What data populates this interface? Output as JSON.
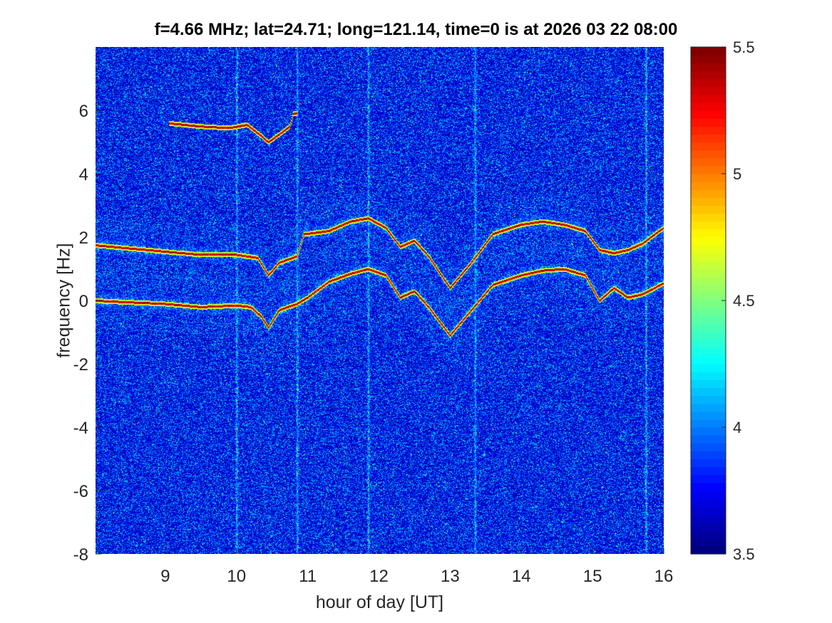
{
  "chart_data": {
    "type": "heatmap",
    "title": "f=4.66 MHz;  lat=24.71; long=121.14, time=0 is at 2026 03 22 08:00",
    "xlabel": "hour of day [UT]",
    "ylabel": "frequency [Hz]",
    "xlim": [
      8.02,
      16.0
    ],
    "ylim": [
      -8,
      8
    ],
    "xticks": [
      9,
      10,
      11,
      12,
      13,
      14,
      15,
      16
    ],
    "yticks": [
      -8,
      -6,
      -4,
      -2,
      0,
      2,
      4,
      6
    ],
    "colorbar": {
      "colormap": "jet",
      "clim": [
        3.5,
        5.5
      ],
      "ticks": [
        3.5,
        4,
        4.5,
        5,
        5.5
      ]
    },
    "background_level": 3.6,
    "series": [
      {
        "x": [
          8.02,
          8.5,
          9.0,
          9.5,
          10.0,
          10.3,
          10.45,
          10.6,
          10.85,
          10.95,
          11.3,
          11.6,
          11.85,
          12.1,
          12.3,
          12.5,
          12.7,
          13.0,
          13.3,
          13.6,
          14.0,
          14.3,
          14.6,
          14.9,
          15.1,
          15.3,
          15.5,
          15.7,
          16.0
        ],
        "y": [
          1.75,
          1.65,
          1.55,
          1.45,
          1.45,
          1.35,
          0.8,
          1.2,
          1.4,
          2.1,
          2.2,
          2.5,
          2.6,
          2.3,
          1.7,
          1.9,
          1.4,
          0.4,
          1.2,
          2.1,
          2.4,
          2.5,
          2.4,
          2.2,
          1.6,
          1.5,
          1.6,
          1.8,
          2.3
        ]
      },
      {
        "x": [
          8.02,
          8.5,
          9.0,
          9.5,
          10.0,
          10.2,
          10.35,
          10.45,
          10.6,
          10.85,
          11.0,
          11.3,
          11.6,
          11.85,
          12.1,
          12.3,
          12.5,
          12.7,
          13.0,
          13.3,
          13.6,
          14.0,
          14.3,
          14.6,
          14.9,
          15.1,
          15.3,
          15.5,
          15.7,
          16.0
        ],
        "y": [
          0.0,
          -0.05,
          -0.1,
          -0.2,
          -0.15,
          -0.2,
          -0.5,
          -0.85,
          -0.3,
          -0.1,
          0.1,
          0.6,
          0.85,
          1.0,
          0.8,
          0.1,
          0.3,
          -0.2,
          -1.1,
          -0.3,
          0.5,
          0.8,
          0.95,
          1.0,
          0.8,
          0.0,
          0.4,
          0.1,
          0.2,
          0.55
        ]
      },
      {
        "x": [
          9.05,
          9.5,
          9.9,
          10.15,
          10.35,
          10.45,
          10.6,
          10.75,
          10.8,
          10.85
        ],
        "y": [
          5.6,
          5.5,
          5.45,
          5.55,
          5.2,
          5.0,
          5.25,
          5.5,
          5.9,
          5.9
        ]
      }
    ],
    "broadband_streaks_x": [
      10.0,
      10.85,
      11.85,
      13.35,
      15.75
    ]
  }
}
